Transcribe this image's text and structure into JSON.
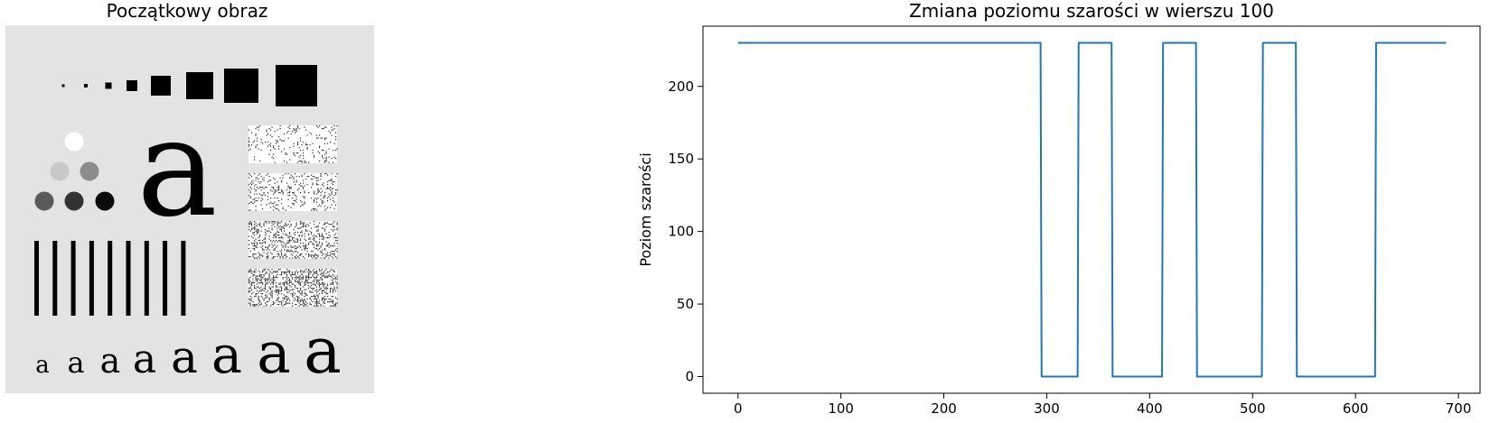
{
  "figure": {
    "left_title": "Początkowy obraz",
    "right_title": "Zmiana poziomu szarości w wierszu 100"
  },
  "image_panel": {
    "background_color": "#e3e3e3",
    "glyph": "a"
  },
  "chart_data": {
    "type": "line",
    "title": "Zmiana poziomu szarości w wierszu 100",
    "xlabel": "",
    "ylabel": "Poziom szarości",
    "xlim": [
      -34,
      721
    ],
    "ylim": [
      -11.5,
      241.5
    ],
    "xticks": [
      0,
      100,
      200,
      300,
      400,
      500,
      600,
      700
    ],
    "yticks": [
      0,
      50,
      100,
      150,
      200
    ],
    "grid": false,
    "series": [
      {
        "color": "#1f77b4",
        "x": [
          0,
          294,
          295,
          330,
          331,
          363,
          364,
          412,
          413,
          445,
          446,
          509,
          510,
          542,
          543,
          619,
          620,
          688
        ],
        "y": [
          230,
          230,
          0,
          0,
          230,
          230,
          0,
          0,
          230,
          230,
          0,
          0,
          230,
          230,
          0,
          0,
          230,
          230
        ]
      }
    ]
  }
}
